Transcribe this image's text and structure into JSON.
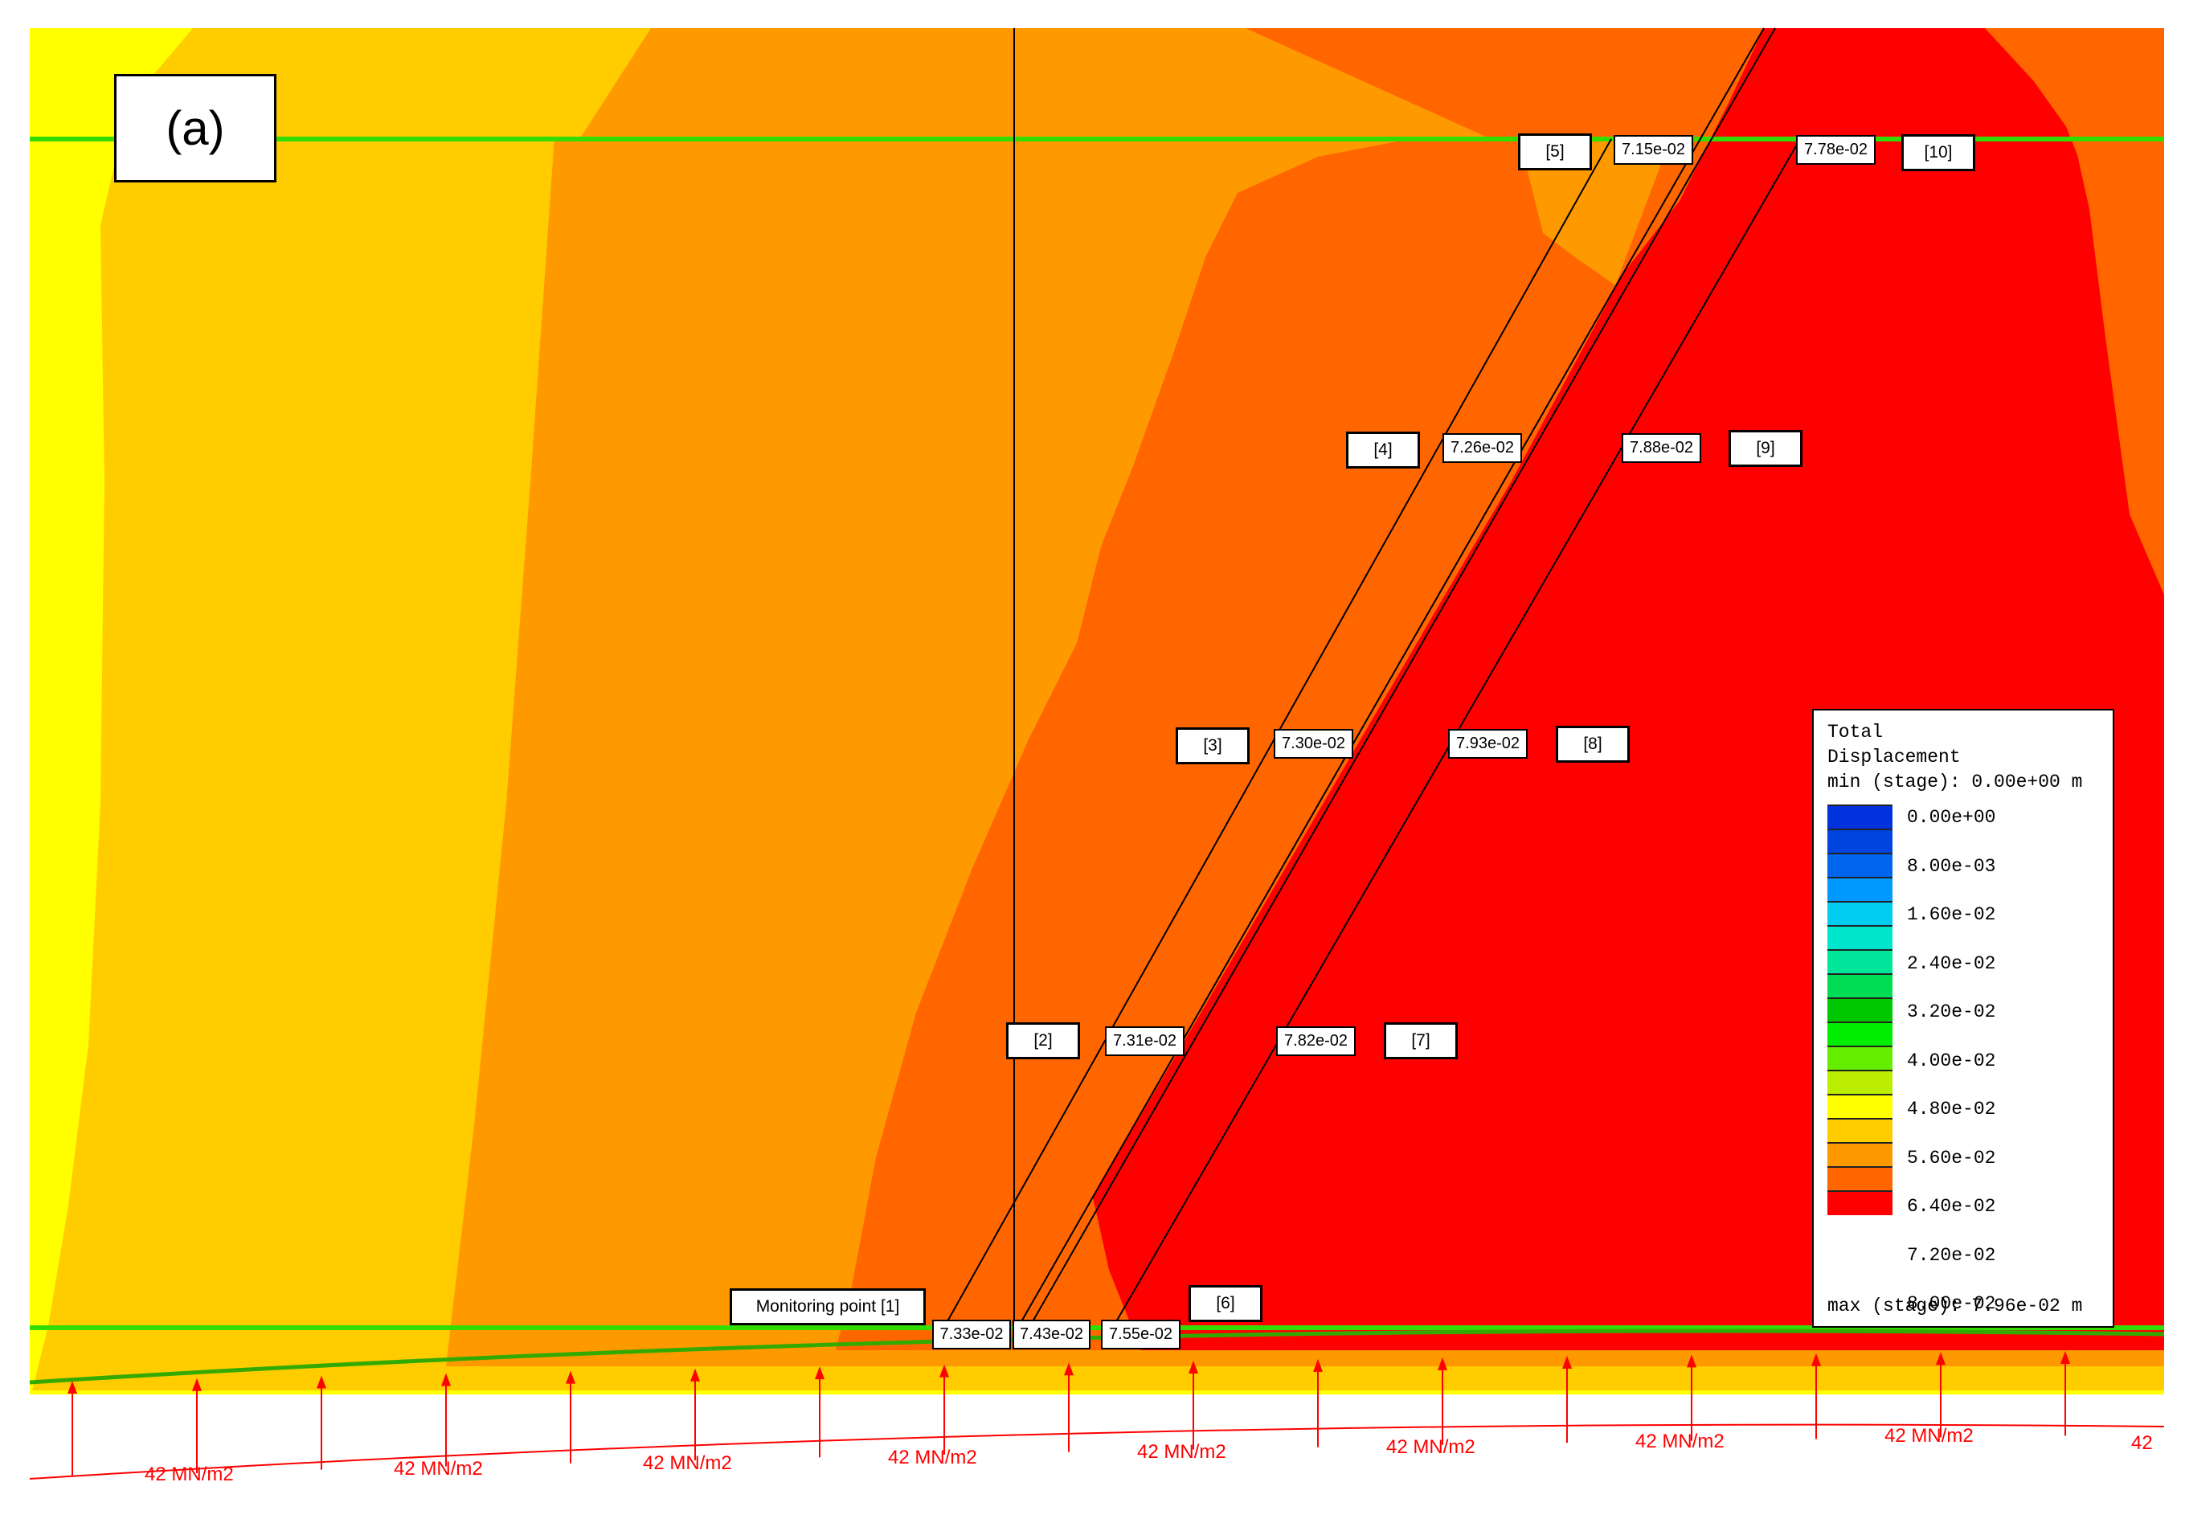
{
  "panel_label": "(a)",
  "colors": {
    "yellow": "#ffff00",
    "light_orange": "#ffcc00",
    "orange": "#ff9900",
    "dark_orange": "#ff6600",
    "red": "#ff0000",
    "green_line": "#33dd00",
    "load_arrow": "#ff0000"
  },
  "monitoring_point_label": "Monitoring point [1]",
  "point_labels": [
    "[2]",
    "[3]",
    "[4]",
    "[5]",
    "[6]",
    "[7]",
    "[8]",
    "[9]",
    "[10]"
  ],
  "values": {
    "p1": "7.33e-02",
    "p2": "7.43e-02",
    "p3": "7.55e-02",
    "l2": "7.31e-02",
    "l3": "7.30e-02",
    "l4": "7.26e-02",
    "l5": "7.15e-02",
    "l7": "7.82e-02",
    "l8": "7.93e-02",
    "l9": "7.88e-02",
    "l10": "7.78e-02"
  },
  "legend": {
    "title_line1": "Total",
    "title_line2": "Displacement",
    "min_line": "min (stage): 0.00e+00 m",
    "max_line": "max (stage): 7.96e-02 m",
    "ticks": [
      "0.00e+00",
      "8.00e-03",
      "1.60e-02",
      "2.40e-02",
      "3.20e-02",
      "4.00e-02",
      "4.80e-02",
      "5.60e-02",
      "6.40e-02",
      "7.20e-02",
      "8.00e-02"
    ],
    "swatches": [
      "#0033dd",
      "#0044e0",
      "#0066ee",
      "#0099ff",
      "#00ccf0",
      "#00e6cc",
      "#00e69a",
      "#00dd55",
      "#00c800",
      "#00ee00",
      "#66ee00",
      "#bbee00",
      "#ffff00",
      "#ffcc00",
      "#ff9900",
      "#ff6600",
      "#ff0000"
    ]
  },
  "load_label": "42 MN/m2",
  "load_label_clipped": "42"
}
